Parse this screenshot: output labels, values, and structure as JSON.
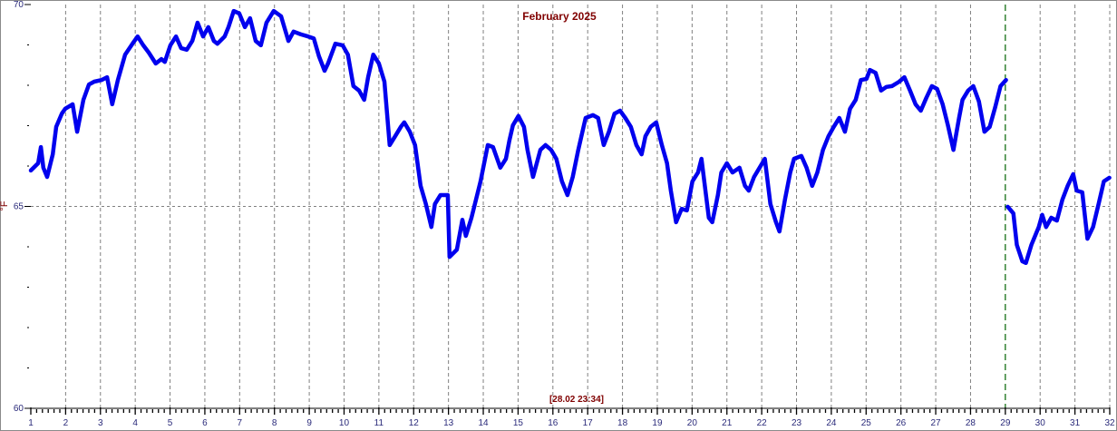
{
  "chart_data": {
    "type": "line",
    "title": "February 2025",
    "timestamp_label": "[28.02 23:34]",
    "xlabel": "",
    "ylabel": "°F",
    "xlim": [
      1,
      32
    ],
    "ylim": [
      60,
      70
    ],
    "x_ticks": [
      1,
      2,
      3,
      4,
      5,
      6,
      7,
      8,
      9,
      10,
      11,
      12,
      13,
      14,
      15,
      16,
      17,
      18,
      19,
      20,
      21,
      22,
      23,
      24,
      25,
      26,
      27,
      28,
      29,
      30,
      31,
      32
    ],
    "y_tick_labels": [
      60,
      65,
      70
    ],
    "y_minor_step": 1,
    "grid": true,
    "marker_line_day": 29,
    "colors": {
      "series": "#0000ee",
      "marker_line": "#006400",
      "grid": "#808080",
      "title": "#800000",
      "ticks": "#2a2a7a"
    },
    "series": [
      {
        "segments": [
          [
            [
              1.0,
              65.89
            ],
            [
              1.21,
              66.07
            ],
            [
              1.29,
              66.47
            ],
            [
              1.36,
              65.96
            ],
            [
              1.47,
              65.73
            ],
            [
              1.63,
              66.29
            ],
            [
              1.73,
              66.97
            ],
            [
              1.89,
              67.3
            ],
            [
              1.99,
              67.42
            ],
            [
              2.2,
              67.53
            ],
            [
              2.33,
              66.85
            ],
            [
              2.51,
              67.64
            ],
            [
              2.67,
              68.02
            ],
            [
              2.82,
              68.09
            ],
            [
              3.03,
              68.13
            ],
            [
              3.19,
              68.2
            ],
            [
              3.34,
              67.53
            ],
            [
              3.5,
              68.13
            ],
            [
              3.71,
              68.76
            ],
            [
              3.92,
              69.03
            ],
            [
              4.07,
              69.21
            ],
            [
              4.23,
              68.99
            ],
            [
              4.39,
              68.81
            ],
            [
              4.59,
              68.54
            ],
            [
              4.75,
              68.65
            ],
            [
              4.85,
              68.58
            ],
            [
              5.01,
              68.99
            ],
            [
              5.17,
              69.21
            ],
            [
              5.32,
              68.92
            ],
            [
              5.48,
              68.88
            ],
            [
              5.64,
              69.1
            ],
            [
              5.79,
              69.55
            ],
            [
              5.95,
              69.21
            ],
            [
              6.1,
              69.44
            ],
            [
              6.26,
              69.1
            ],
            [
              6.36,
              69.03
            ],
            [
              6.57,
              69.21
            ],
            [
              6.68,
              69.44
            ],
            [
              6.83,
              69.84
            ],
            [
              6.99,
              69.78
            ],
            [
              7.15,
              69.44
            ],
            [
              7.3,
              69.66
            ],
            [
              7.46,
              69.1
            ],
            [
              7.61,
              68.99
            ],
            [
              7.77,
              69.55
            ],
            [
              7.98,
              69.84
            ],
            [
              8.19,
              69.71
            ],
            [
              8.4,
              69.1
            ],
            [
              8.55,
              69.33
            ],
            [
              8.76,
              69.26
            ],
            [
              8.97,
              69.21
            ],
            [
              9.13,
              69.16
            ],
            [
              9.28,
              68.72
            ],
            [
              9.44,
              68.36
            ],
            [
              9.54,
              68.54
            ],
            [
              9.75,
              69.03
            ],
            [
              9.96,
              68.99
            ],
            [
              10.11,
              68.76
            ],
            [
              10.27,
              67.98
            ],
            [
              10.43,
              67.87
            ],
            [
              10.58,
              67.64
            ],
            [
              10.69,
              68.2
            ],
            [
              10.84,
              68.76
            ],
            [
              11.0,
              68.54
            ],
            [
              11.16,
              68.09
            ],
            [
              11.31,
              66.52
            ],
            [
              11.47,
              66.74
            ],
            [
              11.63,
              66.97
            ],
            [
              11.73,
              67.08
            ],
            [
              11.89,
              66.85
            ],
            [
              12.04,
              66.52
            ],
            [
              12.2,
              65.51
            ],
            [
              12.35,
              65.06
            ],
            [
              12.51,
              64.49
            ],
            [
              12.61,
              65.06
            ],
            [
              12.77,
              65.28
            ],
            [
              12.98,
              65.28
            ],
            [
              13.03,
              63.75
            ],
            [
              13.24,
              63.93
            ],
            [
              13.4,
              64.67
            ],
            [
              13.5,
              64.27
            ],
            [
              13.66,
              64.72
            ],
            [
              13.92,
              65.62
            ],
            [
              14.13,
              66.52
            ],
            [
              14.28,
              66.47
            ],
            [
              14.49,
              65.96
            ],
            [
              14.65,
              66.18
            ],
            [
              14.75,
              66.63
            ],
            [
              14.85,
              67.01
            ],
            [
              15.01,
              67.24
            ],
            [
              15.17,
              66.97
            ],
            [
              15.27,
              66.4
            ],
            [
              15.43,
              65.73
            ],
            [
              15.64,
              66.4
            ],
            [
              15.79,
              66.52
            ],
            [
              15.95,
              66.4
            ],
            [
              16.1,
              66.18
            ],
            [
              16.26,
              65.62
            ],
            [
              16.42,
              65.28
            ],
            [
              16.57,
              65.73
            ],
            [
              16.73,
              66.4
            ],
            [
              16.94,
              67.19
            ],
            [
              17.15,
              67.26
            ],
            [
              17.3,
              67.19
            ],
            [
              17.46,
              66.52
            ],
            [
              17.61,
              66.85
            ],
            [
              17.77,
              67.3
            ],
            [
              17.93,
              67.37
            ],
            [
              18.08,
              67.19
            ],
            [
              18.24,
              66.97
            ],
            [
              18.4,
              66.52
            ],
            [
              18.55,
              66.29
            ],
            [
              18.66,
              66.74
            ],
            [
              18.81,
              66.97
            ],
            [
              18.97,
              67.08
            ],
            [
              19.13,
              66.52
            ],
            [
              19.28,
              66.07
            ],
            [
              19.39,
              65.39
            ],
            [
              19.54,
              64.61
            ],
            [
              19.7,
              64.94
            ],
            [
              19.85,
              64.9
            ],
            [
              20.01,
              65.62
            ],
            [
              20.17,
              65.84
            ],
            [
              20.27,
              66.18
            ],
            [
              20.48,
              64.72
            ],
            [
              20.58,
              64.61
            ],
            [
              20.74,
              65.28
            ],
            [
              20.84,
              65.84
            ],
            [
              21.0,
              66.07
            ],
            [
              21.16,
              65.84
            ],
            [
              21.36,
              65.96
            ],
            [
              21.52,
              65.51
            ],
            [
              21.63,
              65.39
            ],
            [
              21.78,
              65.73
            ],
            [
              21.94,
              65.96
            ],
            [
              22.09,
              66.18
            ],
            [
              22.25,
              65.06
            ],
            [
              22.41,
              64.61
            ],
            [
              22.51,
              64.38
            ],
            [
              22.67,
              65.17
            ],
            [
              22.82,
              65.84
            ],
            [
              22.93,
              66.18
            ],
            [
              23.14,
              66.25
            ],
            [
              23.29,
              65.96
            ],
            [
              23.45,
              65.51
            ],
            [
              23.6,
              65.84
            ],
            [
              23.76,
              66.4
            ],
            [
              23.92,
              66.74
            ],
            [
              24.07,
              66.97
            ],
            [
              24.23,
              67.19
            ],
            [
              24.39,
              66.85
            ],
            [
              24.54,
              67.42
            ],
            [
              24.7,
              67.64
            ],
            [
              24.85,
              68.13
            ],
            [
              25.01,
              68.16
            ],
            [
              25.11,
              68.38
            ],
            [
              25.27,
              68.31
            ],
            [
              25.43,
              67.87
            ],
            [
              25.58,
              67.96
            ],
            [
              25.74,
              67.98
            ],
            [
              25.95,
              68.09
            ],
            [
              26.1,
              68.2
            ],
            [
              26.26,
              67.87
            ],
            [
              26.42,
              67.53
            ],
            [
              26.57,
              67.37
            ],
            [
              26.73,
              67.69
            ],
            [
              26.89,
              67.98
            ],
            [
              27.04,
              67.91
            ],
            [
              27.2,
              67.53
            ],
            [
              27.35,
              67.01
            ],
            [
              27.51,
              66.4
            ],
            [
              27.67,
              67.19
            ],
            [
              27.77,
              67.64
            ],
            [
              27.93,
              67.87
            ],
            [
              28.08,
              67.98
            ],
            [
              28.24,
              67.6
            ],
            [
              28.4,
              66.85
            ],
            [
              28.55,
              66.97
            ],
            [
              28.71,
              67.46
            ],
            [
              28.86,
              67.98
            ],
            [
              29.02,
              68.13
            ]
          ],
          [
            [
              29.07,
              64.99
            ],
            [
              29.23,
              64.83
            ],
            [
              29.33,
              64.05
            ],
            [
              29.49,
              63.64
            ],
            [
              29.59,
              63.6
            ],
            [
              29.75,
              64.05
            ],
            [
              29.96,
              64.49
            ],
            [
              30.06,
              64.79
            ],
            [
              30.17,
              64.49
            ],
            [
              30.32,
              64.72
            ],
            [
              30.48,
              64.65
            ],
            [
              30.64,
              65.17
            ],
            [
              30.79,
              65.51
            ],
            [
              30.95,
              65.8
            ],
            [
              31.05,
              65.39
            ],
            [
              31.21,
              65.35
            ],
            [
              31.36,
              64.2
            ],
            [
              31.52,
              64.49
            ],
            [
              31.68,
              65.06
            ],
            [
              31.83,
              65.62
            ],
            [
              31.99,
              65.71
            ]
          ]
        ]
      }
    ]
  }
}
